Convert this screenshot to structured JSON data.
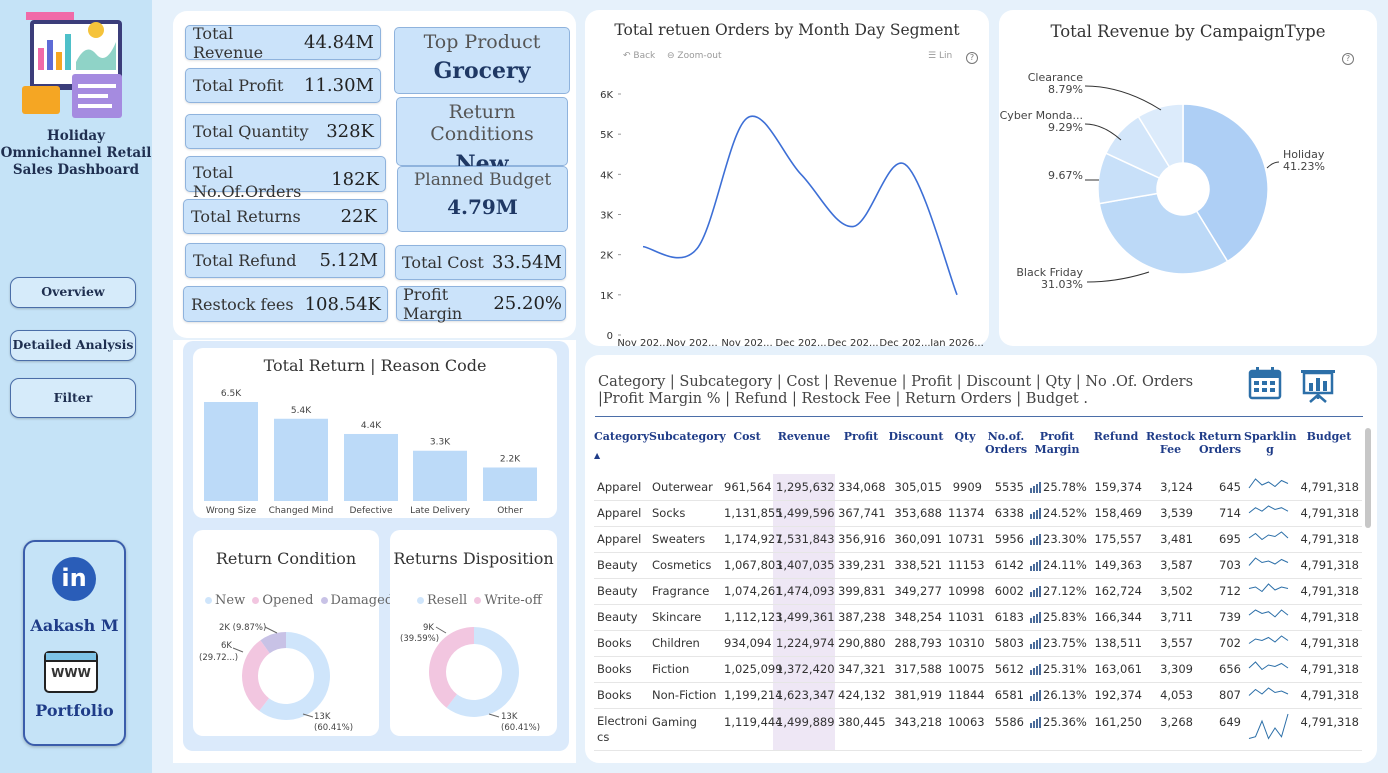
{
  "sidebar": {
    "title_line1": "Holiday",
    "title_line2": "Omnichannel Retail",
    "title_line3": "Sales Dashboard",
    "nav": [
      "Overview",
      "Detailed Analysis",
      "Filter"
    ],
    "profile_name": "Aakash M",
    "portfolio_label": "Portfolio",
    "linkedin_text": "in",
    "www_text": "WWW"
  },
  "kpis": {
    "total_revenue": {
      "label": "Total Revenue",
      "value": "44.84M"
    },
    "total_profit": {
      "label": "Total Profit",
      "value": "11.30M"
    },
    "total_quantity": {
      "label": "Total Quantity",
      "value": "328K"
    },
    "total_orders": {
      "label": "Total No.Of.Orders",
      "value": "182K"
    },
    "total_returns": {
      "label": "Total Returns",
      "value": "22K"
    },
    "total_refund": {
      "label": "Total Refund",
      "value": "5.12M"
    },
    "restock_fees": {
      "label": "Restock fees",
      "value": "108.54K"
    },
    "top_product": {
      "label": "Top Product",
      "value": "Grocery"
    },
    "return_conditions": {
      "label": "Return Conditions",
      "value": "New"
    },
    "planned_budget": {
      "label": "Planned Budget",
      "value": "4.79M"
    },
    "total_cost": {
      "label": "Total Cost",
      "value": "33.54M"
    },
    "profit_margin": {
      "label": "Profit Margin",
      "value": "25.20%"
    }
  },
  "line_chart": {
    "title": "Total retuen Orders by Month Day Segment",
    "toolbar": {
      "back": "Back",
      "zoom": "Zoom-out",
      "lin": "Lin",
      "help": "?"
    }
  },
  "pie_chart": {
    "title": "Total Revenue by CampaignType",
    "help": "?"
  },
  "bar_chart": {
    "title": "Total Return | Reason Code"
  },
  "donut1": {
    "title": "Return Condition",
    "legend": [
      "New",
      "Opened",
      "Damaged"
    ],
    "legend_colors": [
      "#cfe5fb",
      "#f2c6e0",
      "#c8c2e6"
    ],
    "label_a": "2K (9.87%)",
    "label_b1": "6K",
    "label_b2": "(29.72...)",
    "label_c1": "13K",
    "label_c2": "(60.41%)"
  },
  "donut2": {
    "title": "Returns Disposition",
    "legend": [
      "Resell",
      "Write-off"
    ],
    "legend_colors": [
      "#cfe5fb",
      "#f2c6e0"
    ],
    "label_a1": "9K",
    "label_a2": "(39.59%)",
    "label_b1": "13K",
    "label_b2": "(60.41%)"
  },
  "chart_data": [
    {
      "type": "line",
      "title": "Total retuen Orders by Month Day Segment",
      "x": [
        "Nov 202...",
        "Nov 202...",
        "Nov 202...",
        "Dec 202...",
        "Dec 202...",
        "Dec 202...",
        "Jan 2026..."
      ],
      "values": [
        2200,
        2150,
        5400,
        4000,
        2700,
        4250,
        1000
      ],
      "y_ticks": [
        "0",
        "1K",
        "2K",
        "3K",
        "4K",
        "5K",
        "6K"
      ],
      "ylim": [
        0,
        6000
      ],
      "color": "#3d6fd6"
    },
    {
      "type": "pie",
      "title": "Total Revenue by CampaignType",
      "categories": [
        "Holiday",
        "Black Friday",
        "9.67%",
        "Cyber Monda...",
        "Clearance"
      ],
      "labels": [
        "Holiday\n41.23%",
        "Black Friday\n31.03%",
        "9.67%",
        "Cyber Monda...\n9.29%",
        "Clearance\n8.79%"
      ],
      "values": [
        41.23,
        31.03,
        9.67,
        9.29,
        8.79
      ],
      "colors": [
        "#aecff5",
        "#bcd9f7",
        "#c8e0f9",
        "#d3e6fa",
        "#dcebfb"
      ]
    },
    {
      "type": "bar",
      "title": "Total Return | Reason Code",
      "categories": [
        "Wrong Size",
        "Changed Mind",
        "Defective",
        "Late Delivery",
        "Other"
      ],
      "values": [
        6500,
        5400,
        4400,
        3300,
        2200
      ],
      "labels": [
        "6.5K",
        "5.4K",
        "4.4K",
        "3.3K",
        "2.2K"
      ],
      "color": "#bcdaf8"
    },
    {
      "type": "pie",
      "title": "Return Condition",
      "categories": [
        "New",
        "Opened",
        "Damaged"
      ],
      "values": [
        60.41,
        29.72,
        9.87
      ],
      "colors": [
        "#cfe5fb",
        "#f2c6e0",
        "#c8c2e6"
      ]
    },
    {
      "type": "pie",
      "title": "Returns Disposition",
      "categories": [
        "Resell",
        "Write-off"
      ],
      "values": [
        60.41,
        39.59
      ],
      "colors": [
        "#cfe5fb",
        "#f2c6e0"
      ]
    }
  ],
  "table": {
    "heading": "Category | Subcategory | Cost | Revenue | Profit | Discount | Qty | No .Of. Orders |Profit Margin % | Refund | Restock Fee | Return Orders | Budget .",
    "sort_arrow": "▲",
    "columns": [
      "Category",
      "Subcategory",
      "Cost",
      "Revenue",
      "Profit",
      "Discount",
      "Qty",
      "No.of.\nOrders",
      "Profit\nMargin",
      "Refund",
      "Restock\nFee",
      "Return\nOrders",
      "Sparklin\ng",
      "Budget"
    ],
    "rows": [
      [
        "Apparel",
        "Outerwear",
        "961,564",
        "1,295,632",
        "334,068",
        "305,015",
        "9909",
        "5535",
        "25.78%",
        "159,374",
        "3,124",
        "645",
        "4,791,318"
      ],
      [
        "Apparel",
        "Socks",
        "1,131,855",
        "1,499,596",
        "367,741",
        "353,688",
        "11374",
        "6338",
        "24.52%",
        "158,469",
        "3,539",
        "714",
        "4,791,318"
      ],
      [
        "Apparel",
        "Sweaters",
        "1,174,927",
        "1,531,843",
        "356,916",
        "360,091",
        "10731",
        "5956",
        "23.30%",
        "175,557",
        "3,481",
        "695",
        "4,791,318"
      ],
      [
        "Beauty",
        "Cosmetics",
        "1,067,803",
        "1,407,035",
        "339,231",
        "338,521",
        "11153",
        "6142",
        "24.11%",
        "149,363",
        "3,587",
        "703",
        "4,791,318"
      ],
      [
        "Beauty",
        "Fragrance",
        "1,074,261",
        "1,474,093",
        "399,831",
        "349,277",
        "10998",
        "6002",
        "27.12%",
        "162,724",
        "3,502",
        "712",
        "4,791,318"
      ],
      [
        "Beauty",
        "Skincare",
        "1,112,123",
        "1,499,361",
        "387,238",
        "348,254",
        "11031",
        "6183",
        "25.83%",
        "166,344",
        "3,711",
        "739",
        "4,791,318"
      ],
      [
        "Books",
        "Children",
        "934,094",
        "1,224,974",
        "290,880",
        "288,793",
        "10310",
        "5803",
        "23.75%",
        "138,511",
        "3,557",
        "702",
        "4,791,318"
      ],
      [
        "Books",
        "Fiction",
        "1,025,099",
        "1,372,420",
        "347,321",
        "317,588",
        "10075",
        "5612",
        "25.31%",
        "163,061",
        "3,309",
        "656",
        "4,791,318"
      ],
      [
        "Books",
        "Non-Fiction",
        "1,199,214",
        "1,623,347",
        "424,132",
        "381,919",
        "11844",
        "6581",
        "26.13%",
        "192,374",
        "4,053",
        "807",
        "4,791,318"
      ],
      [
        "Electroni cs",
        "Gaming",
        "1,119,444",
        "1,499,889",
        "380,445",
        "343,218",
        "10063",
        "5586",
        "25.36%",
        "161,250",
        "3,268",
        "649",
        "4,791,318"
      ]
    ]
  }
}
